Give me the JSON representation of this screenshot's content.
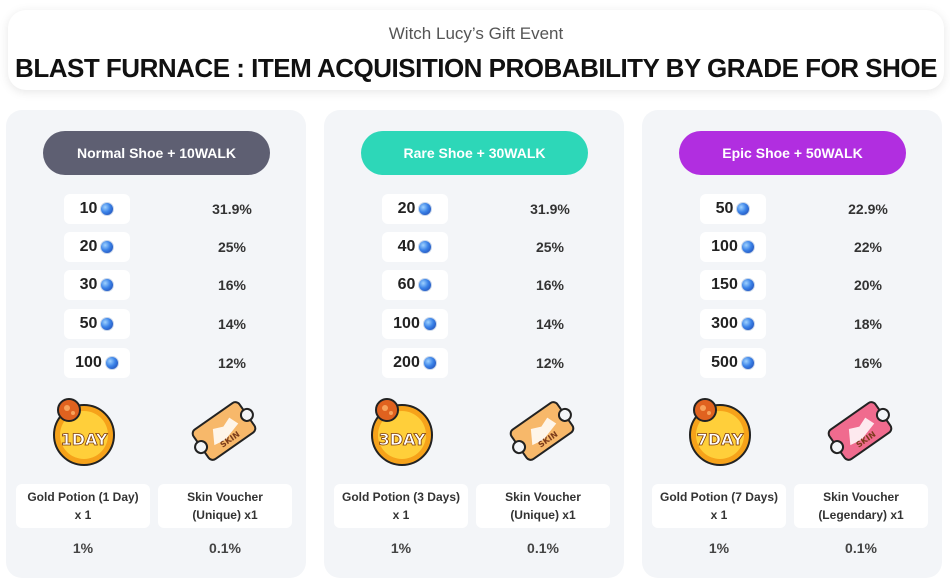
{
  "header": {
    "subtitle": "Witch Lucy’s Gift Event",
    "title": "BLAST FURNACE : ITEM ACQUISITION PROBABILITY BY GRADE FOR SHOE"
  },
  "coin_icon": "walk-token-icon",
  "panels": [
    {
      "label": "Normal Shoe + 10WALK",
      "color": "#5e5f72",
      "rows": [
        {
          "amount": "10",
          "pct": "31.9%"
        },
        {
          "amount": "20",
          "pct": "25%"
        },
        {
          "amount": "30",
          "pct": "16%"
        },
        {
          "amount": "50",
          "pct": "14%"
        },
        {
          "amount": "100",
          "pct": "12%"
        }
      ],
      "potion_badge": "1DAY",
      "voucher_text": "SKIN",
      "voucher_color": "#f7b86a",
      "reward_left": "Gold Potion (1 Day)\nx 1",
      "reward_right": "Skin Voucher\n(Unique) x1",
      "prob_left": "1%",
      "prob_right": "0.1%"
    },
    {
      "label": "Rare Shoe + 30WALK",
      "color": "#2dd7b8",
      "rows": [
        {
          "amount": "20",
          "pct": "31.9%"
        },
        {
          "amount": "40",
          "pct": "25%"
        },
        {
          "amount": "60",
          "pct": "16%"
        },
        {
          "amount": "100",
          "pct": "14%"
        },
        {
          "amount": "200",
          "pct": "12%"
        }
      ],
      "potion_badge": "3DAY",
      "voucher_text": "SKIN",
      "voucher_color": "#f7b86a",
      "reward_left": "Gold Potion (3 Days)\nx 1",
      "reward_right": "Skin Voucher\n(Unique) x1",
      "prob_left": "1%",
      "prob_right": "0.1%"
    },
    {
      "label": "Epic Shoe + 50WALK",
      "color": "#b12ee0",
      "rows": [
        {
          "amount": "50",
          "pct": "22.9%"
        },
        {
          "amount": "100",
          "pct": "22%"
        },
        {
          "amount": "150",
          "pct": "20%"
        },
        {
          "amount": "300",
          "pct": "18%"
        },
        {
          "amount": "500",
          "pct": "16%"
        }
      ],
      "potion_badge": "7DAY",
      "voucher_text": "SKIN",
      "voucher_color": "#f06b8e",
      "reward_left": "Gold Potion (7 Days)\nx 1",
      "reward_right": "Skin Voucher\n(Legendary) x1",
      "prob_left": "1%",
      "prob_right": "0.1%"
    }
  ]
}
